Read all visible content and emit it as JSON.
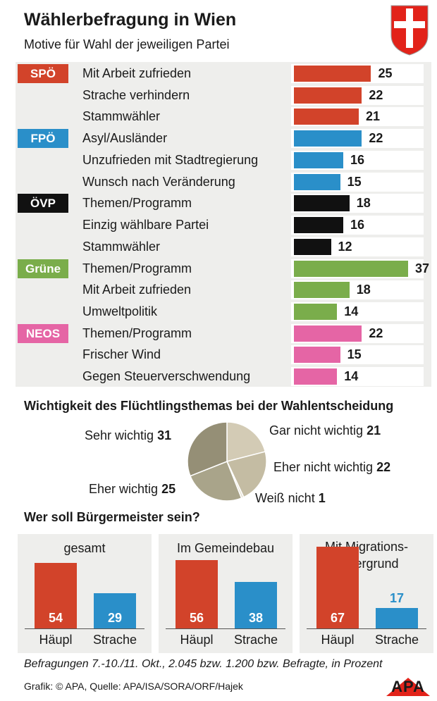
{
  "header": {
    "title": "Wählerbefragung in Wien",
    "subtitle": "Motive für Wahl der jeweiligen Partei"
  },
  "colors": {
    "SPÖ": "#d2432a",
    "FPÖ": "#2a8fc9",
    "ÖVP": "#111111",
    "Grüne": "#7aad4b",
    "NEOS": "#e565a5"
  },
  "chart_data": [
    {
      "type": "bar",
      "orientation": "horizontal",
      "title": "Motive für Wahl der jeweiligen Partei",
      "unit": "Prozent",
      "xlim": [
        0,
        37
      ],
      "groups": [
        {
          "party": "SPÖ",
          "items": [
            {
              "label": "Mit Arbeit zufrieden",
              "value": 25
            },
            {
              "label": "Strache verhindern",
              "value": 22
            },
            {
              "label": "Stammwähler",
              "value": 21
            }
          ]
        },
        {
          "party": "FPÖ",
          "items": [
            {
              "label": "Asyl/Ausländer",
              "value": 22
            },
            {
              "label": "Unzufrieden mit Stadtregierung",
              "value": 16
            },
            {
              "label": "Wunsch nach Veränderung",
              "value": 15
            }
          ]
        },
        {
          "party": "ÖVP",
          "items": [
            {
              "label": "Themen/Programm",
              "value": 18
            },
            {
              "label": "Einzig wählbare Partei",
              "value": 16
            },
            {
              "label": "Stammwähler",
              "value": 12
            }
          ]
        },
        {
          "party": "Grüne",
          "items": [
            {
              "label": "Themen/Programm",
              "value": 37
            },
            {
              "label": "Mit Arbeit zufrieden",
              "value": 18
            },
            {
              "label": "Umweltpolitik",
              "value": 14
            }
          ]
        },
        {
          "party": "NEOS",
          "items": [
            {
              "label": "Themen/Programm",
              "value": 22
            },
            {
              "label": "Frischer Wind",
              "value": 15
            },
            {
              "label": "Gegen Steuerverschwendung",
              "value": 14
            }
          ]
        }
      ]
    },
    {
      "type": "pie",
      "title": "Wichtigkeit des Flüchtlingsthemas bei der Wahlentscheidung",
      "slices": [
        {
          "label": "Gar nicht wichtig",
          "value": 21,
          "color": "#d3cbb5"
        },
        {
          "label": "Eher nicht wichtig",
          "value": 22,
          "color": "#c4bca3"
        },
        {
          "label": "Weiß nicht",
          "value": 1,
          "color": "#e8e3d6"
        },
        {
          "label": "Eher wichtig",
          "value": 25,
          "color": "#a9a48a"
        },
        {
          "label": "Sehr wichtig",
          "value": 31,
          "color": "#958f76"
        }
      ]
    },
    {
      "type": "bar",
      "title": "Wer soll Bürgermeister sein?",
      "categories": [
        "Häupl",
        "Strache"
      ],
      "ylim": [
        0,
        67
      ],
      "panels": [
        {
          "name": "gesamt",
          "values": [
            54,
            29
          ]
        },
        {
          "name": "Im Gemeindebau",
          "values": [
            56,
            38
          ]
        },
        {
          "name": "Mit Migrations-\nhintergrund",
          "values": [
            67,
            17
          ]
        }
      ]
    }
  ],
  "footer": {
    "note": "Befragungen 7.-10./11. Okt., 2.045 bzw. 1.200 bzw. Befragte, in Prozent",
    "credit": "Grafik: © APA, Quelle: APA/ISA/SORA/ORF/Hajek",
    "logo": "APA"
  }
}
